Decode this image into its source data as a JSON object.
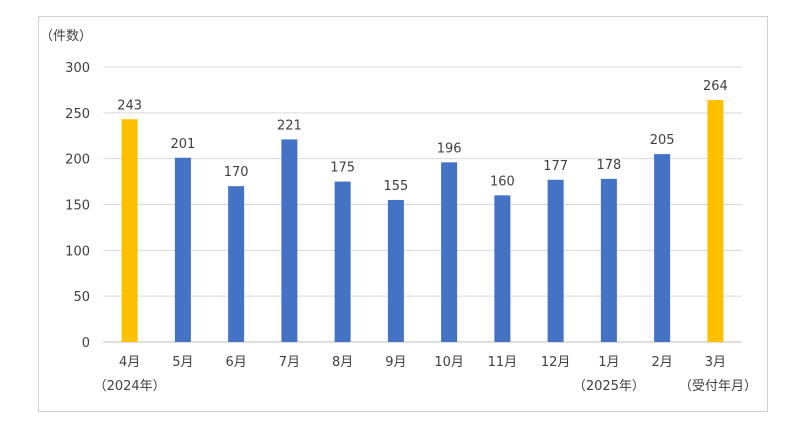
{
  "chart_data": {
    "type": "bar",
    "ylabel": "（件数）",
    "xlabel": "（受付年月）",
    "ylim": [
      0,
      300
    ],
    "yticks": [
      0,
      50,
      100,
      150,
      200,
      250,
      300
    ],
    "grid": true,
    "categories": [
      "4月",
      "5月",
      "6月",
      "7月",
      "8月",
      "9月",
      "10月",
      "11月",
      "12月",
      "1月",
      "2月",
      "3月"
    ],
    "values": [
      243,
      201,
      170,
      221,
      175,
      155,
      196,
      160,
      177,
      178,
      205,
      264
    ],
    "bar_colors": [
      "#FFC000",
      "#4472C4",
      "#4472C4",
      "#4472C4",
      "#4472C4",
      "#4472C4",
      "#4472C4",
      "#4472C4",
      "#4472C4",
      "#4472C4",
      "#4472C4",
      "#FFC000"
    ],
    "year_labels": [
      {
        "category_index": 0,
        "text": "（2024年）"
      },
      {
        "category_index": 9,
        "text": "（2025年）"
      }
    ]
  }
}
